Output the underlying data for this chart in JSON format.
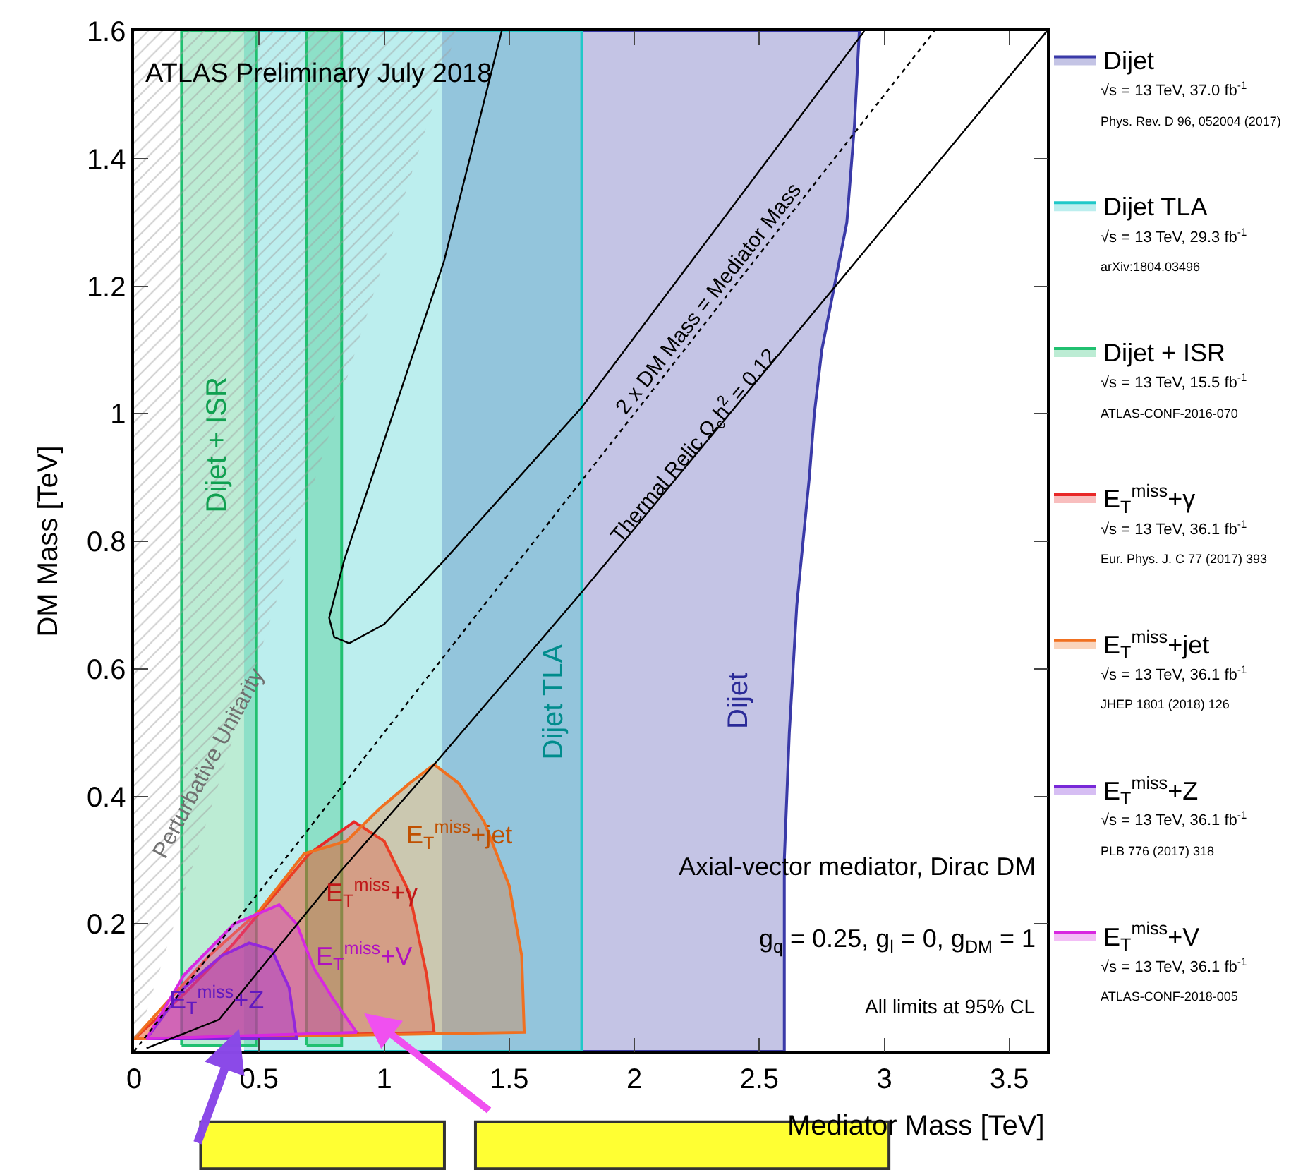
{
  "chart_data": {
    "type": "area",
    "xlabel": "Mediator Mass [TeV]",
    "ylabel": "DM Mass [TeV]",
    "xlim": [
      0,
      3.65
    ],
    "xticks": [
      0,
      0.5,
      1,
      1.5,
      2,
      2.5,
      3,
      3.5
    ],
    "ylim": [
      0,
      1.6
    ],
    "yticks": [
      0.2,
      0.4,
      0.6,
      0.8,
      1,
      1.2,
      1.4,
      1.6
    ],
    "legend": "right",
    "series": [
      {
        "name": "Dijet",
        "color": "#3a3aa8",
        "x": [
          1.23,
          2.6,
          2.6,
          2.62,
          2.65,
          2.7,
          2.72,
          2.75,
          2.85,
          2.88,
          2.9,
          1.23
        ],
        "values": [
          0,
          0,
          0.3,
          0.5,
          0.7,
          0.9,
          1.0,
          1.1,
          1.3,
          1.45,
          1.6,
          1.6
        ]
      },
      {
        "name": "Dijet TLA",
        "color": "#20c8c8",
        "x": [
          0.44,
          1.79,
          1.79,
          0.44
        ],
        "values": [
          0,
          0,
          1.6,
          1.6
        ]
      },
      {
        "name": "Dijet + ISR",
        "color": "#20c070",
        "x": [
          0.19,
          0.49,
          0.49,
          0.19,
          0.19,
          null,
          0.69,
          0.83,
          0.83,
          0.69,
          0.69
        ],
        "values": [
          0.01,
          0.01,
          1.6,
          1.6,
          0.01,
          null,
          0.01,
          0.01,
          1.6,
          1.6,
          0.01
        ]
      },
      {
        "name": "E$_{T}$$^{miss}$+γ",
        "color": "#e82828",
        "x": [
          0.0,
          0.2,
          0.4,
          0.7,
          0.88,
          1.0,
          1.1,
          1.17,
          1.2,
          0.0
        ],
        "values": [
          0.02,
          0.09,
          0.17,
          0.31,
          0.36,
          0.33,
          0.25,
          0.12,
          0.03,
          0.02
        ]
      },
      {
        "name": "E$_{T}$$^{miss}$+jet",
        "color": "#f07020",
        "x": [
          0.0,
          0.3,
          0.5,
          0.68,
          0.85,
          0.98,
          1.1,
          1.2,
          1.3,
          1.4,
          1.5,
          1.55,
          1.56,
          0.0
        ],
        "values": [
          0.02,
          0.15,
          0.22,
          0.31,
          0.33,
          0.38,
          0.42,
          0.45,
          0.42,
          0.36,
          0.26,
          0.15,
          0.03,
          0.02
        ]
      },
      {
        "name": "E$_{T}$$^{miss}$+Z",
        "color": "#7828d8",
        "x": [
          0.05,
          0.2,
          0.35,
          0.46,
          0.55,
          0.62,
          0.65,
          0.05
        ],
        "values": [
          0.02,
          0.1,
          0.15,
          0.17,
          0.16,
          0.1,
          0.02,
          0.02
        ]
      },
      {
        "name": "E$_{T}$$^{miss}$+V",
        "color": "#d828e0",
        "x": [
          0.05,
          0.2,
          0.4,
          0.58,
          0.65,
          0.72,
          0.8,
          0.89,
          0.05
        ],
        "values": [
          0.02,
          0.12,
          0.2,
          0.23,
          0.2,
          0.13,
          0.08,
          0.03,
          0.02
        ]
      },
      {
        "color": "#a0a0a0",
        "x": [
          0,
          1.29,
          0,
          0
        ],
        "values": [
          0,
          1.6,
          1.6,
          0
        ]
      },
      {
        "type": "line",
        "line_style": "dotted",
        "color": "#000000",
        "x": [
          0,
          3.2
        ],
        "values": [
          0,
          1.6
        ]
      },
      {
        "type": "line",
        "line_style": "solid",
        "color": "#000000",
        "x": [
          1.47,
          1.24,
          0.84,
          0.78,
          0.8,
          0.86,
          1.0,
          1.24,
          1.79,
          2.92
        ],
        "values": [
          1.6,
          1.24,
          0.77,
          0.68,
          0.65,
          0.64,
          0.67,
          0.77,
          1.01,
          1.6
        ]
      },
      {
        "type": "line",
        "line_style": "solid",
        "color": "#000000",
        "x": [
          0.05,
          0.34,
          0.82,
          1.2,
          1.79,
          3.1,
          3.65
        ],
        "values": [
          0.005,
          0.05,
          0.28,
          0.45,
          0.72,
          1.34,
          1.6
        ]
      }
    ],
    "annotations": [
      "ATLAS Preliminary July 2018",
      "Axial-vector mediator, Dirac DM",
      "g$_{q}$ = 0.25, g$_{l}$ = 0, g$_{DM}$ = 1",
      "All limits at 95% CL",
      "Dijet + ISR",
      "Dijet TLA",
      "Dijet",
      "Perturbative Unitarity",
      "2 x DM Mass = Mediator Mass",
      "Thermal Relic Ω$_{c}$h$^{2}$ = 0.12",
      "E$_{T}$$^{miss}$+jet",
      "E$_{T}$$^{miss}$+γ",
      "E$_{T}$$^{miss}$+V",
      "E$_{T}$$^{miss}$+Z",
      "√s = 13 TeV, 37.0 fb$^{-1}$",
      "Phys. Rev. D 96, 052004 (2017)",
      "√s = 13 TeV, 29.3 fb$^{-1}$",
      "arXiv:1804.03496",
      "√s = 13 TeV, 15.5 fb$^{-1}$",
      "ATLAS-CONF-2016-070",
      "√s = 13 TeV, 36.1 fb$^{-1}$",
      "Eur. Phys. J. C 77 (2017) 393",
      "√s = 13 TeV, 36.1 fb$^{-1}$",
      "JHEP 1801 (2018) 126",
      "√s = 13 TeV, 36.1 fb$^{-1}$",
      "PLB 776 (2017) 318",
      "√s = 13 TeV, 36.1 fb$^{-1}$",
      "ATLAS-CONF-2018-005"
    ]
  }
}
